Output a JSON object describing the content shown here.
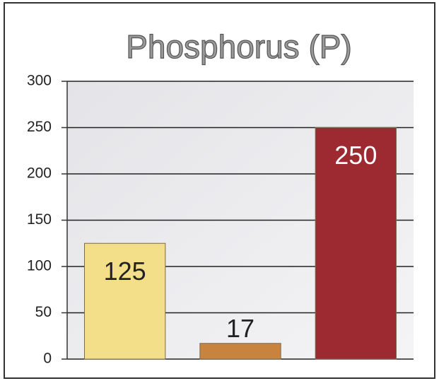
{
  "chart_data": {
    "type": "bar",
    "title": "Phosphorus (P)",
    "categories": [
      null,
      null,
      null
    ],
    "values": [
      125,
      17,
      250
    ],
    "colors": [
      "#f3de8a",
      "#c8843f",
      "#9c2a30"
    ],
    "ylim": [
      0,
      300
    ],
    "yticks": [
      0,
      50,
      100,
      150,
      200,
      250,
      300
    ],
    "grid": true
  }
}
